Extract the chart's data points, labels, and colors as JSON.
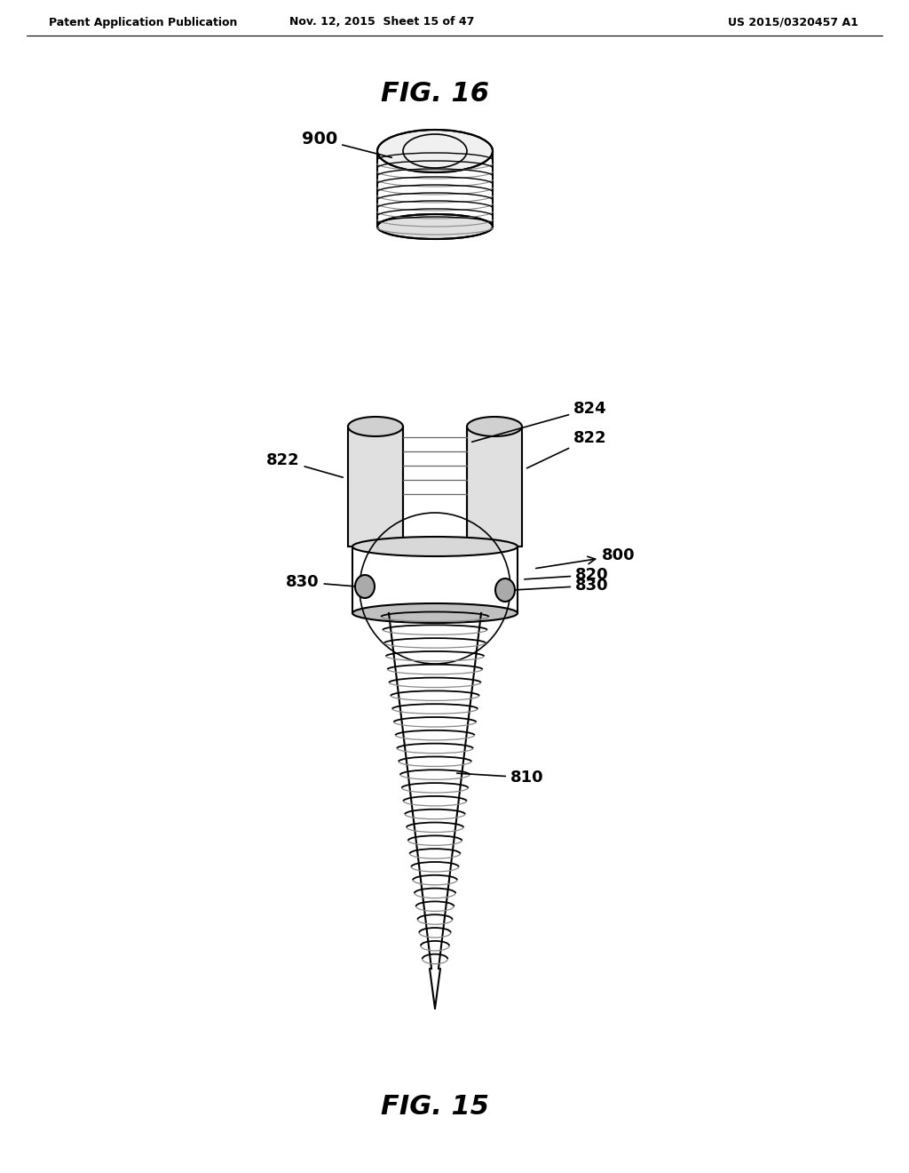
{
  "background_color": "#ffffff",
  "header_left": "Patent Application Publication",
  "header_center": "Nov. 12, 2015  Sheet 15 of 47",
  "header_right": "US 2015/0320457 A1",
  "fig16_title": "FIG. 16",
  "fig15_title": "FIG. 15",
  "label_900": "900",
  "label_800": "800",
  "label_810": "810",
  "label_820": "820",
  "label_822_left": "822",
  "label_822_right": "822",
  "label_824": "824",
  "label_830_left": "830",
  "label_830_right": "830",
  "line_color": "#000000",
  "text_color": "#000000"
}
